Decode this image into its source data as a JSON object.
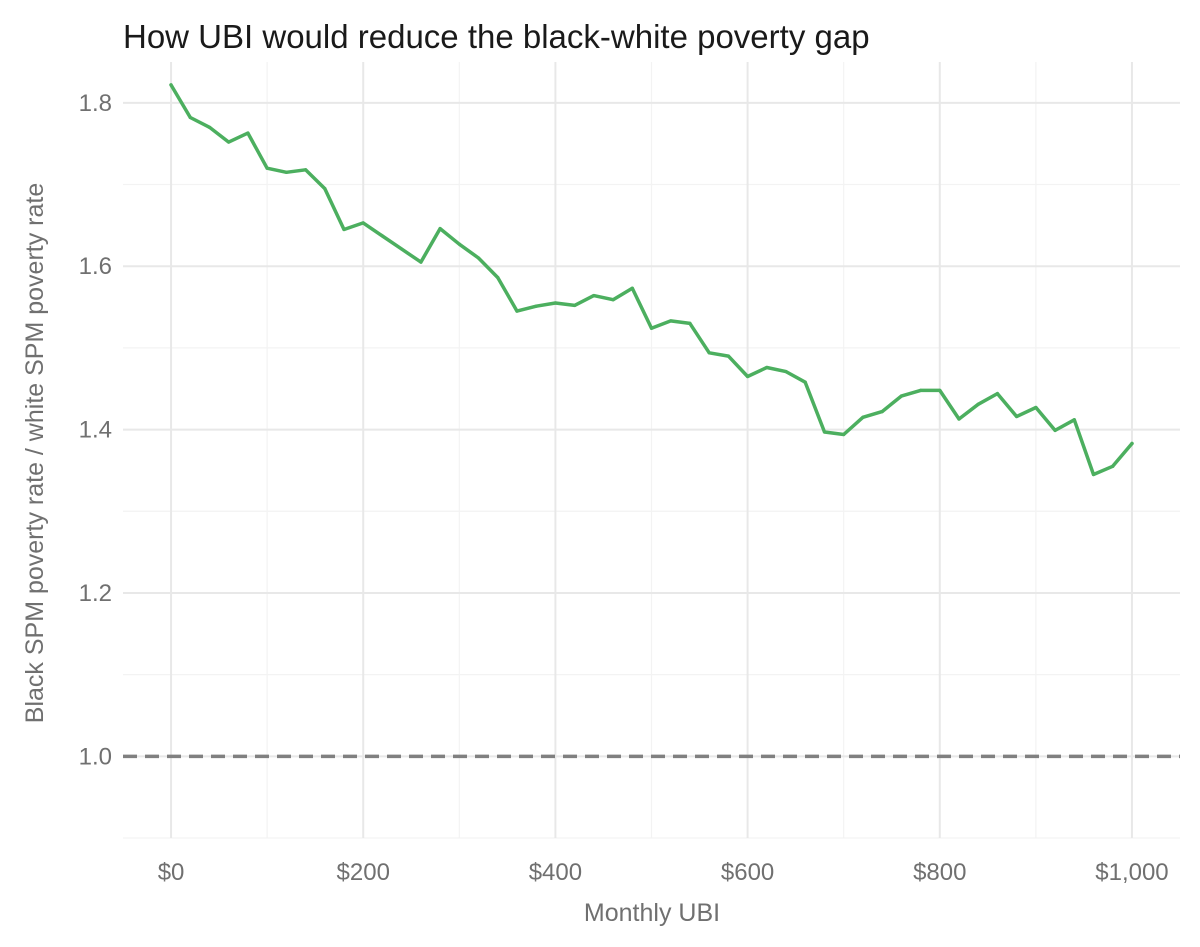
{
  "chart_data": {
    "type": "line",
    "title": "How UBI would reduce the black-white poverty gap",
    "xlabel": "Monthly UBI",
    "ylabel": "Black SPM poverty rate / white SPM poverty rate",
    "xlim": [
      -50,
      1050
    ],
    "ylim": [
      0.9,
      1.85
    ],
    "x_ticks": [
      0,
      200,
      400,
      600,
      800,
      1000
    ],
    "x_tick_labels": [
      "$0",
      "$200",
      "$400",
      "$600",
      "$800",
      "$1,000"
    ],
    "y_ticks": [
      1.0,
      1.2,
      1.4,
      1.6,
      1.8
    ],
    "y_tick_labels": [
      "1.0",
      "1.2",
      "1.4",
      "1.6",
      "1.8"
    ],
    "grid": true,
    "reference_line": {
      "y": 1.0,
      "style": "dashed",
      "color": "#808080"
    },
    "series": [
      {
        "color": "#4caf5f",
        "x": [
          0,
          20,
          40,
          60,
          80,
          100,
          120,
          140,
          160,
          180,
          200,
          220,
          240,
          260,
          280,
          300,
          320,
          340,
          360,
          380,
          400,
          420,
          440,
          460,
          480,
          500,
          520,
          540,
          560,
          580,
          600,
          620,
          640,
          660,
          680,
          700,
          720,
          740,
          760,
          780,
          800,
          820,
          840,
          860,
          880,
          900,
          920,
          940,
          960,
          980,
          1000
        ],
        "y": [
          1.822,
          1.782,
          1.77,
          1.752,
          1.763,
          1.72,
          1.715,
          1.718,
          1.695,
          1.645,
          1.653,
          1.637,
          1.621,
          1.605,
          1.646,
          1.627,
          1.61,
          1.586,
          1.545,
          1.551,
          1.555,
          1.552,
          1.564,
          1.559,
          1.573,
          1.524,
          1.533,
          1.53,
          1.494,
          1.49,
          1.465,
          1.476,
          1.471,
          1.458,
          1.397,
          1.394,
          1.415,
          1.422,
          1.441,
          1.448,
          1.448,
          1.413,
          1.431,
          1.444,
          1.416,
          1.427,
          1.399,
          1.412,
          1.345,
          1.355,
          1.383
        ]
      }
    ]
  }
}
